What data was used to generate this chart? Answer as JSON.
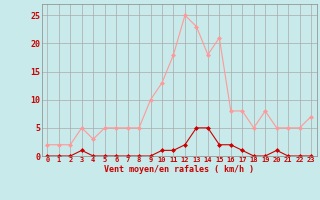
{
  "hours": [
    0,
    1,
    2,
    3,
    4,
    5,
    6,
    7,
    8,
    9,
    10,
    11,
    12,
    13,
    14,
    15,
    16,
    17,
    18,
    19,
    20,
    21,
    22,
    23
  ],
  "vent_moyen": [
    0,
    0,
    0,
    1,
    0,
    0,
    0,
    0,
    0,
    0,
    1,
    1,
    2,
    5,
    5,
    2,
    2,
    1,
    0,
    0,
    1,
    0,
    0,
    0
  ],
  "rafales": [
    2,
    2,
    2,
    5,
    3,
    5,
    5,
    5,
    5,
    10,
    13,
    18,
    25,
    23,
    18,
    21,
    8,
    8,
    5,
    8,
    5,
    5,
    5,
    7
  ],
  "bg_color": "#c8eaea",
  "grid_color": "#aaaaaa",
  "line_color_moyen": "#cc0000",
  "line_color_rafales": "#ff9999",
  "axis_label": "Vent moyen/en rafales ( km/h )",
  "ylim": [
    0,
    27
  ],
  "yticks": [
    0,
    5,
    10,
    15,
    20,
    25
  ],
  "xlim": [
    -0.5,
    23.5
  ]
}
